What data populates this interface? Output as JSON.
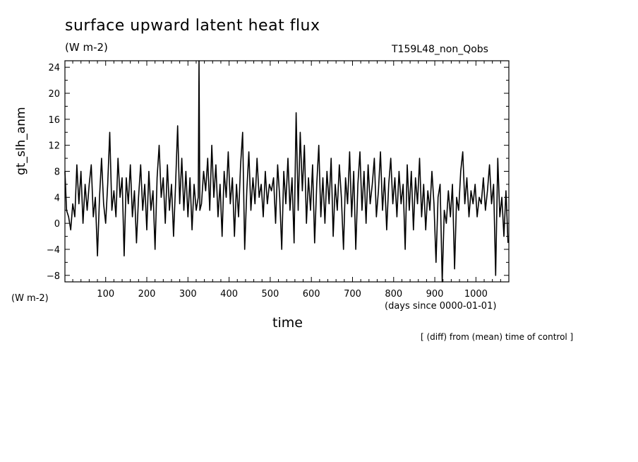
{
  "chart_data": {
    "type": "line",
    "title": "surface upward latent heat flux",
    "units_label": "(W m-2)",
    "run_label": "T159L48_non_Qobs",
    "ylabel": "gt_slh_anm",
    "y_units": "(W m-2)",
    "xlabel": "time",
    "x_units": "(days since 0000-01-01)",
    "note": "[ (diff) from (mean) time of control ]",
    "xlim": [
      1,
      1080
    ],
    "ylim": [
      -9,
      25
    ],
    "xticks": [
      100,
      200,
      300,
      400,
      500,
      600,
      700,
      800,
      900,
      1000
    ],
    "yticks": [
      -8,
      -4,
      0,
      4,
      8,
      12,
      16,
      20,
      24
    ],
    "grid": false,
    "series": [
      {
        "values": [
          [
            1,
            8
          ],
          [
            5,
            2
          ],
          [
            10,
            1
          ],
          [
            15,
            -1
          ],
          [
            20,
            3
          ],
          [
            25,
            1
          ],
          [
            30,
            9
          ],
          [
            35,
            3
          ],
          [
            40,
            8
          ],
          [
            45,
            0
          ],
          [
            50,
            6
          ],
          [
            55,
            2
          ],
          [
            60,
            6
          ],
          [
            65,
            9
          ],
          [
            70,
            1
          ],
          [
            75,
            4
          ],
          [
            80,
            -5
          ],
          [
            85,
            4
          ],
          [
            90,
            10
          ],
          [
            95,
            3
          ],
          [
            100,
            0
          ],
          [
            105,
            6
          ],
          [
            110,
            14
          ],
          [
            115,
            2
          ],
          [
            120,
            5
          ],
          [
            125,
            1
          ],
          [
            130,
            10
          ],
          [
            135,
            4
          ],
          [
            140,
            7
          ],
          [
            145,
            -5
          ],
          [
            150,
            7
          ],
          [
            155,
            3
          ],
          [
            160,
            9
          ],
          [
            165,
            1
          ],
          [
            170,
            5
          ],
          [
            175,
            -3
          ],
          [
            180,
            4
          ],
          [
            185,
            9
          ],
          [
            190,
            2
          ],
          [
            195,
            6
          ],
          [
            200,
            -1
          ],
          [
            205,
            8
          ],
          [
            210,
            2
          ],
          [
            215,
            5
          ],
          [
            220,
            -4
          ],
          [
            225,
            7
          ],
          [
            230,
            12
          ],
          [
            235,
            4
          ],
          [
            240,
            7
          ],
          [
            245,
            0
          ],
          [
            250,
            9
          ],
          [
            255,
            2
          ],
          [
            260,
            6
          ],
          [
            265,
            -2
          ],
          [
            270,
            6
          ],
          [
            275,
            15
          ],
          [
            280,
            3
          ],
          [
            285,
            10
          ],
          [
            290,
            2
          ],
          [
            295,
            8
          ],
          [
            300,
            1
          ],
          [
            305,
            7
          ],
          [
            310,
            -1
          ],
          [
            315,
            6
          ],
          [
            320,
            2
          ],
          [
            325,
            4
          ],
          [
            327,
            25
          ],
          [
            329,
            2
          ],
          [
            333,
            3
          ],
          [
            338,
            8
          ],
          [
            343,
            5
          ],
          [
            348,
            10
          ],
          [
            353,
            2
          ],
          [
            358,
            12
          ],
          [
            363,
            4
          ],
          [
            368,
            9
          ],
          [
            373,
            1
          ],
          [
            378,
            6
          ],
          [
            383,
            -2
          ],
          [
            388,
            8
          ],
          [
            393,
            4
          ],
          [
            398,
            11
          ],
          [
            403,
            3
          ],
          [
            408,
            7
          ],
          [
            413,
            -2
          ],
          [
            418,
            6
          ],
          [
            423,
            1
          ],
          [
            428,
            9
          ],
          [
            433,
            14
          ],
          [
            438,
            -4
          ],
          [
            443,
            5
          ],
          [
            448,
            11
          ],
          [
            453,
            2
          ],
          [
            458,
            7
          ],
          [
            463,
            3
          ],
          [
            468,
            10
          ],
          [
            473,
            4
          ],
          [
            478,
            6
          ],
          [
            483,
            1
          ],
          [
            488,
            8
          ],
          [
            493,
            3
          ],
          [
            498,
            6
          ],
          [
            503,
            5
          ],
          [
            508,
            7
          ],
          [
            513,
            0
          ],
          [
            518,
            9
          ],
          [
            523,
            4
          ],
          [
            528,
            -4
          ],
          [
            533,
            8
          ],
          [
            538,
            3
          ],
          [
            543,
            10
          ],
          [
            548,
            2
          ],
          [
            553,
            7
          ],
          [
            558,
            -3
          ],
          [
            563,
            17
          ],
          [
            568,
            2
          ],
          [
            573,
            14
          ],
          [
            578,
            5
          ],
          [
            583,
            12
          ],
          [
            588,
            0
          ],
          [
            593,
            7
          ],
          [
            598,
            2
          ],
          [
            603,
            9
          ],
          [
            608,
            -3
          ],
          [
            613,
            6
          ],
          [
            618,
            12
          ],
          [
            623,
            1
          ],
          [
            628,
            7
          ],
          [
            633,
            0
          ],
          [
            638,
            8
          ],
          [
            643,
            3
          ],
          [
            648,
            10
          ],
          [
            653,
            -2
          ],
          [
            658,
            6
          ],
          [
            663,
            2
          ],
          [
            668,
            9
          ],
          [
            673,
            4
          ],
          [
            678,
            -4
          ],
          [
            683,
            7
          ],
          [
            688,
            3
          ],
          [
            693,
            11
          ],
          [
            698,
            1
          ],
          [
            703,
            8
          ],
          [
            708,
            -4
          ],
          [
            713,
            6
          ],
          [
            718,
            11
          ],
          [
            723,
            2
          ],
          [
            728,
            8
          ],
          [
            733,
            0
          ],
          [
            738,
            9
          ],
          [
            743,
            3
          ],
          [
            748,
            6
          ],
          [
            753,
            10
          ],
          [
            758,
            1
          ],
          [
            763,
            5
          ],
          [
            768,
            11
          ],
          [
            773,
            2
          ],
          [
            778,
            7
          ],
          [
            783,
            -1
          ],
          [
            788,
            6
          ],
          [
            793,
            10
          ],
          [
            798,
            3
          ],
          [
            803,
            7
          ],
          [
            808,
            1
          ],
          [
            813,
            8
          ],
          [
            818,
            3
          ],
          [
            823,
            6
          ],
          [
            828,
            -4
          ],
          [
            833,
            9
          ],
          [
            838,
            2
          ],
          [
            843,
            8
          ],
          [
            848,
            -1
          ],
          [
            853,
            7
          ],
          [
            858,
            3
          ],
          [
            863,
            10
          ],
          [
            868,
            1
          ],
          [
            873,
            6
          ],
          [
            878,
            -1
          ],
          [
            883,
            5
          ],
          [
            888,
            2
          ],
          [
            893,
            8
          ],
          [
            898,
            3
          ],
          [
            903,
            -6
          ],
          [
            908,
            4
          ],
          [
            913,
            6
          ],
          [
            918,
            -9
          ],
          [
            923,
            2
          ],
          [
            928,
            0
          ],
          [
            933,
            5
          ],
          [
            938,
            1
          ],
          [
            943,
            6
          ],
          [
            948,
            -7
          ],
          [
            953,
            4
          ],
          [
            958,
            2
          ],
          [
            963,
            8
          ],
          [
            968,
            11
          ],
          [
            973,
            3
          ],
          [
            978,
            7
          ],
          [
            983,
            1
          ],
          [
            988,
            5
          ],
          [
            993,
            3
          ],
          [
            998,
            6
          ],
          [
            1003,
            1
          ],
          [
            1008,
            4
          ],
          [
            1013,
            3
          ],
          [
            1018,
            7
          ],
          [
            1023,
            2
          ],
          [
            1028,
            5
          ],
          [
            1033,
            9
          ],
          [
            1038,
            3
          ],
          [
            1043,
            6
          ],
          [
            1048,
            -8
          ],
          [
            1053,
            10
          ],
          [
            1058,
            1
          ],
          [
            1063,
            4
          ],
          [
            1068,
            -2
          ],
          [
            1073,
            5
          ],
          [
            1078,
            -3
          ]
        ]
      }
    ]
  }
}
